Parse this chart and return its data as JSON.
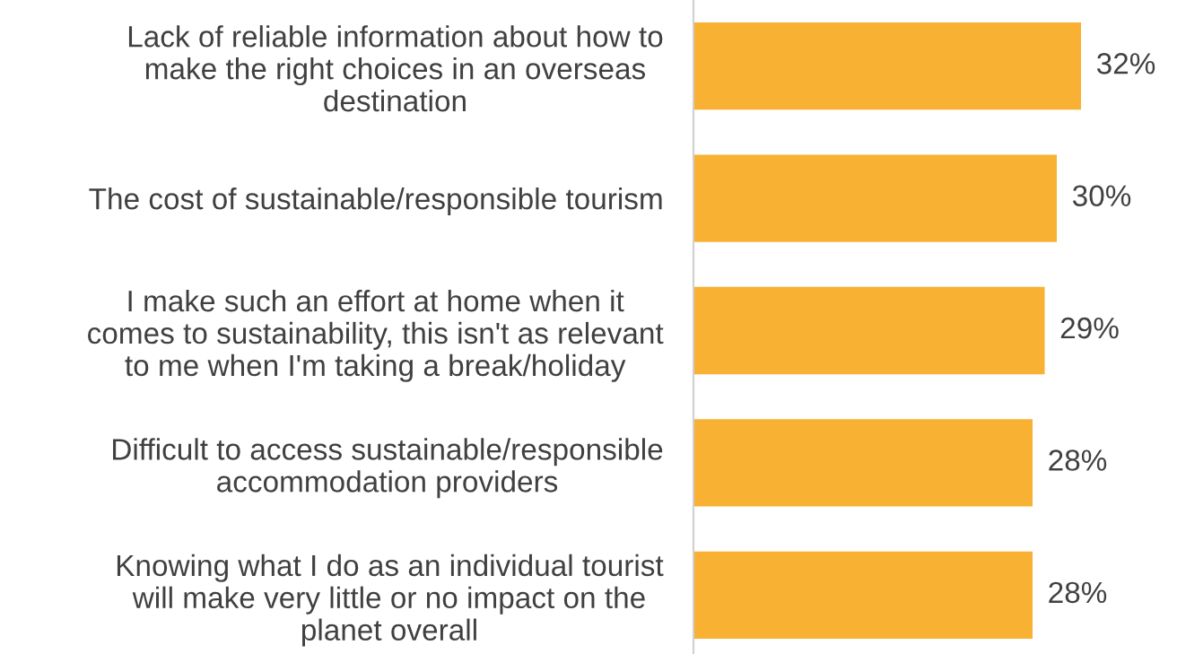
{
  "chart_data": {
    "type": "bar",
    "orientation": "horizontal",
    "categories": [
      "Lack of reliable information about how to\nmake the right choices in an overseas\ndestination",
      "The cost of sustainable/responsible tourism",
      "I make such an effort at home when it\ncomes to sustainability, this isn't as relevant\nto me when I'm taking a break/holiday",
      "Difficult to access sustainable/responsible\naccommodation providers",
      "Knowing what I do as an individual tourist\nwill make very little or no impact on the\nplanet overall"
    ],
    "values": [
      32,
      30,
      29,
      28,
      28
    ],
    "value_labels": [
      "32%",
      "30%",
      "29%",
      "28%",
      "28%"
    ],
    "color": "#f8b133",
    "grid": false,
    "legend": false
  }
}
